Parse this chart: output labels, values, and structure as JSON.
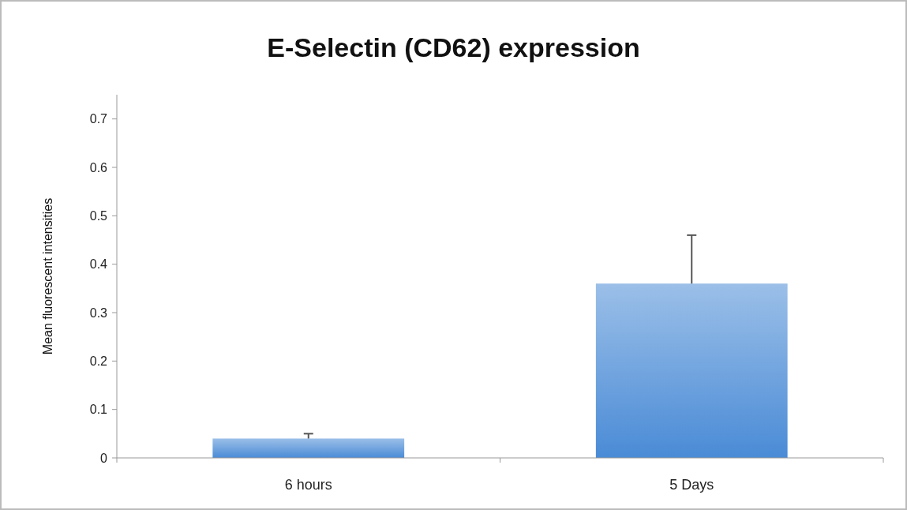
{
  "chart_data": {
    "type": "bar",
    "title": "E-Selectin  (CD62) expression",
    "ylabel": "Mean fluorescent intensities",
    "categories": [
      "6 hours",
      "5 Days"
    ],
    "values": [
      0.04,
      0.36
    ],
    "errors": [
      [
        0.04,
        0.05
      ],
      [
        0.36,
        0.46
      ]
    ],
    "color": "#4a8bd6",
    "ylim": [
      0,
      0.75
    ],
    "yticks": [
      0,
      0.1,
      0.2,
      0.3,
      0.4,
      0.5,
      0.6,
      0.7
    ],
    "grid": false
  }
}
